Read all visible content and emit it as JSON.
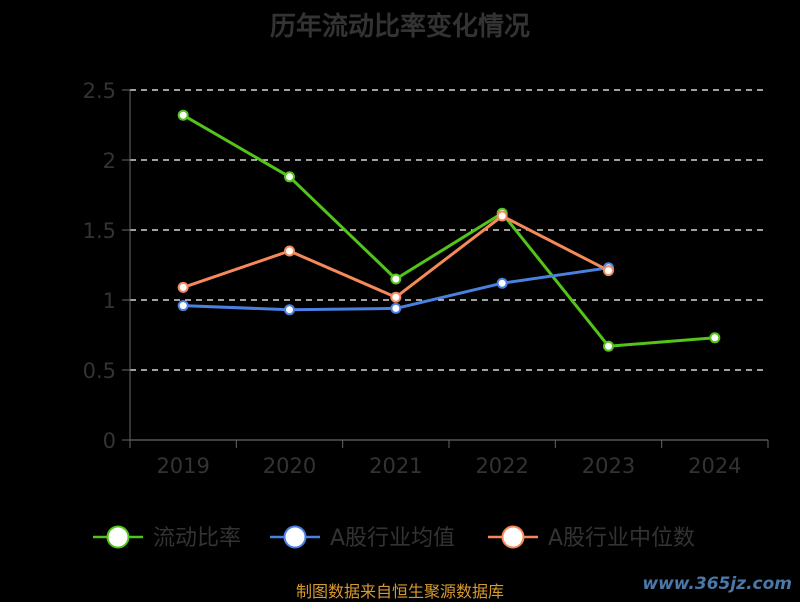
{
  "title": "历年流动比率变化情况",
  "footer": "制图数据来自恒生聚源数据库",
  "watermark": "www.365jz.com",
  "chart_data": {
    "type": "line",
    "title": "历年流动比率变化情况",
    "categories": [
      "2019",
      "2020",
      "2021",
      "2022",
      "2023",
      "2024"
    ],
    "ylim": [
      0,
      2.5
    ],
    "yticks": [
      0,
      0.5,
      1,
      1.5,
      2,
      2.5
    ],
    "ytick_labels": [
      "0",
      "0.5",
      "1",
      "1.5",
      "2",
      "2.5"
    ],
    "grid": true,
    "legend_position": "bottom",
    "series": [
      {
        "name": "流动比率",
        "color": "#52c41a",
        "values": [
          2.32,
          1.88,
          1.15,
          1.62,
          0.67,
          0.73
        ]
      },
      {
        "name": "A股行业均值",
        "color": "#4a80e0",
        "values": [
          0.96,
          0.93,
          0.94,
          1.12,
          1.23,
          null
        ]
      },
      {
        "name": "A股行业中位数",
        "color": "#f5895a",
        "values": [
          1.09,
          1.35,
          1.02,
          1.6,
          1.21,
          null
        ]
      }
    ]
  }
}
